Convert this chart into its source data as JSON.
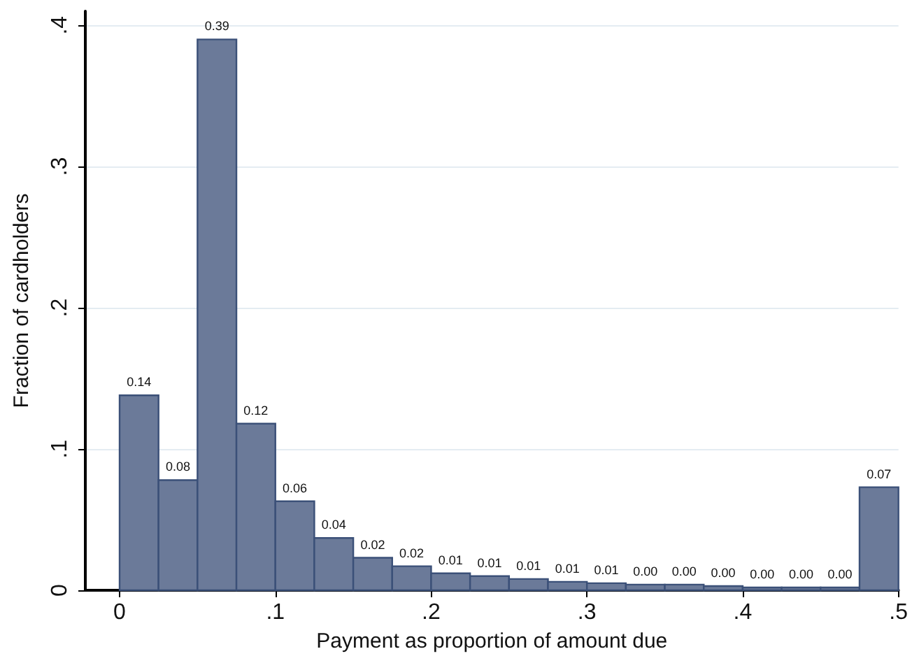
{
  "chart_data": {
    "type": "histogram",
    "xlabel": "Payment as proportion of amount due",
    "ylabel": "Fraction of cardholders",
    "bins": [
      0,
      0.025,
      0.05,
      0.075,
      0.1,
      0.125,
      0.15,
      0.175,
      0.2,
      0.225,
      0.25,
      0.275,
      0.3,
      0.325,
      0.35,
      0.375,
      0.4,
      0.425,
      0.45,
      0.475,
      0.5
    ],
    "values": [
      0.138,
      0.078,
      0.39,
      0.118,
      0.063,
      0.037,
      0.023,
      0.017,
      0.012,
      0.01,
      0.008,
      0.006,
      0.005,
      0.004,
      0.004,
      0.003,
      0.002,
      0.002,
      0.002,
      0.073
    ],
    "value_labels": [
      "0.14",
      "0.08",
      "0.39",
      "0.12",
      "0.06",
      "0.04",
      "0.02",
      "0.02",
      "0.01",
      "0.01",
      "0.01",
      "0.01",
      "0.01",
      "0.00",
      "0.00",
      "0.00",
      "0.00",
      "0.00",
      "0.00",
      "0.07"
    ],
    "color": "#6b7a99",
    "xlim": [
      -0.022,
      0.5
    ],
    "xticks": [
      0,
      {
        "value": 0.1,
        "label": ".1"
      },
      {
        "value": 0.2,
        "label": ".2"
      },
      {
        "value": 0.3,
        "label": ".3"
      },
      {
        "value": 0.4,
        "label": ".4"
      },
      {
        "value": 0.5,
        "label": ".5"
      }
    ],
    "ylim": [
      0,
      0.41
    ],
    "yticks": [
      0,
      {
        "value": 0.1,
        "label": ".1"
      },
      {
        "value": 0.2,
        "label": ".2"
      },
      {
        "value": 0.3,
        "label": ".3"
      },
      {
        "value": 0.4,
        "label": ".4"
      }
    ],
    "grid": "y"
  }
}
